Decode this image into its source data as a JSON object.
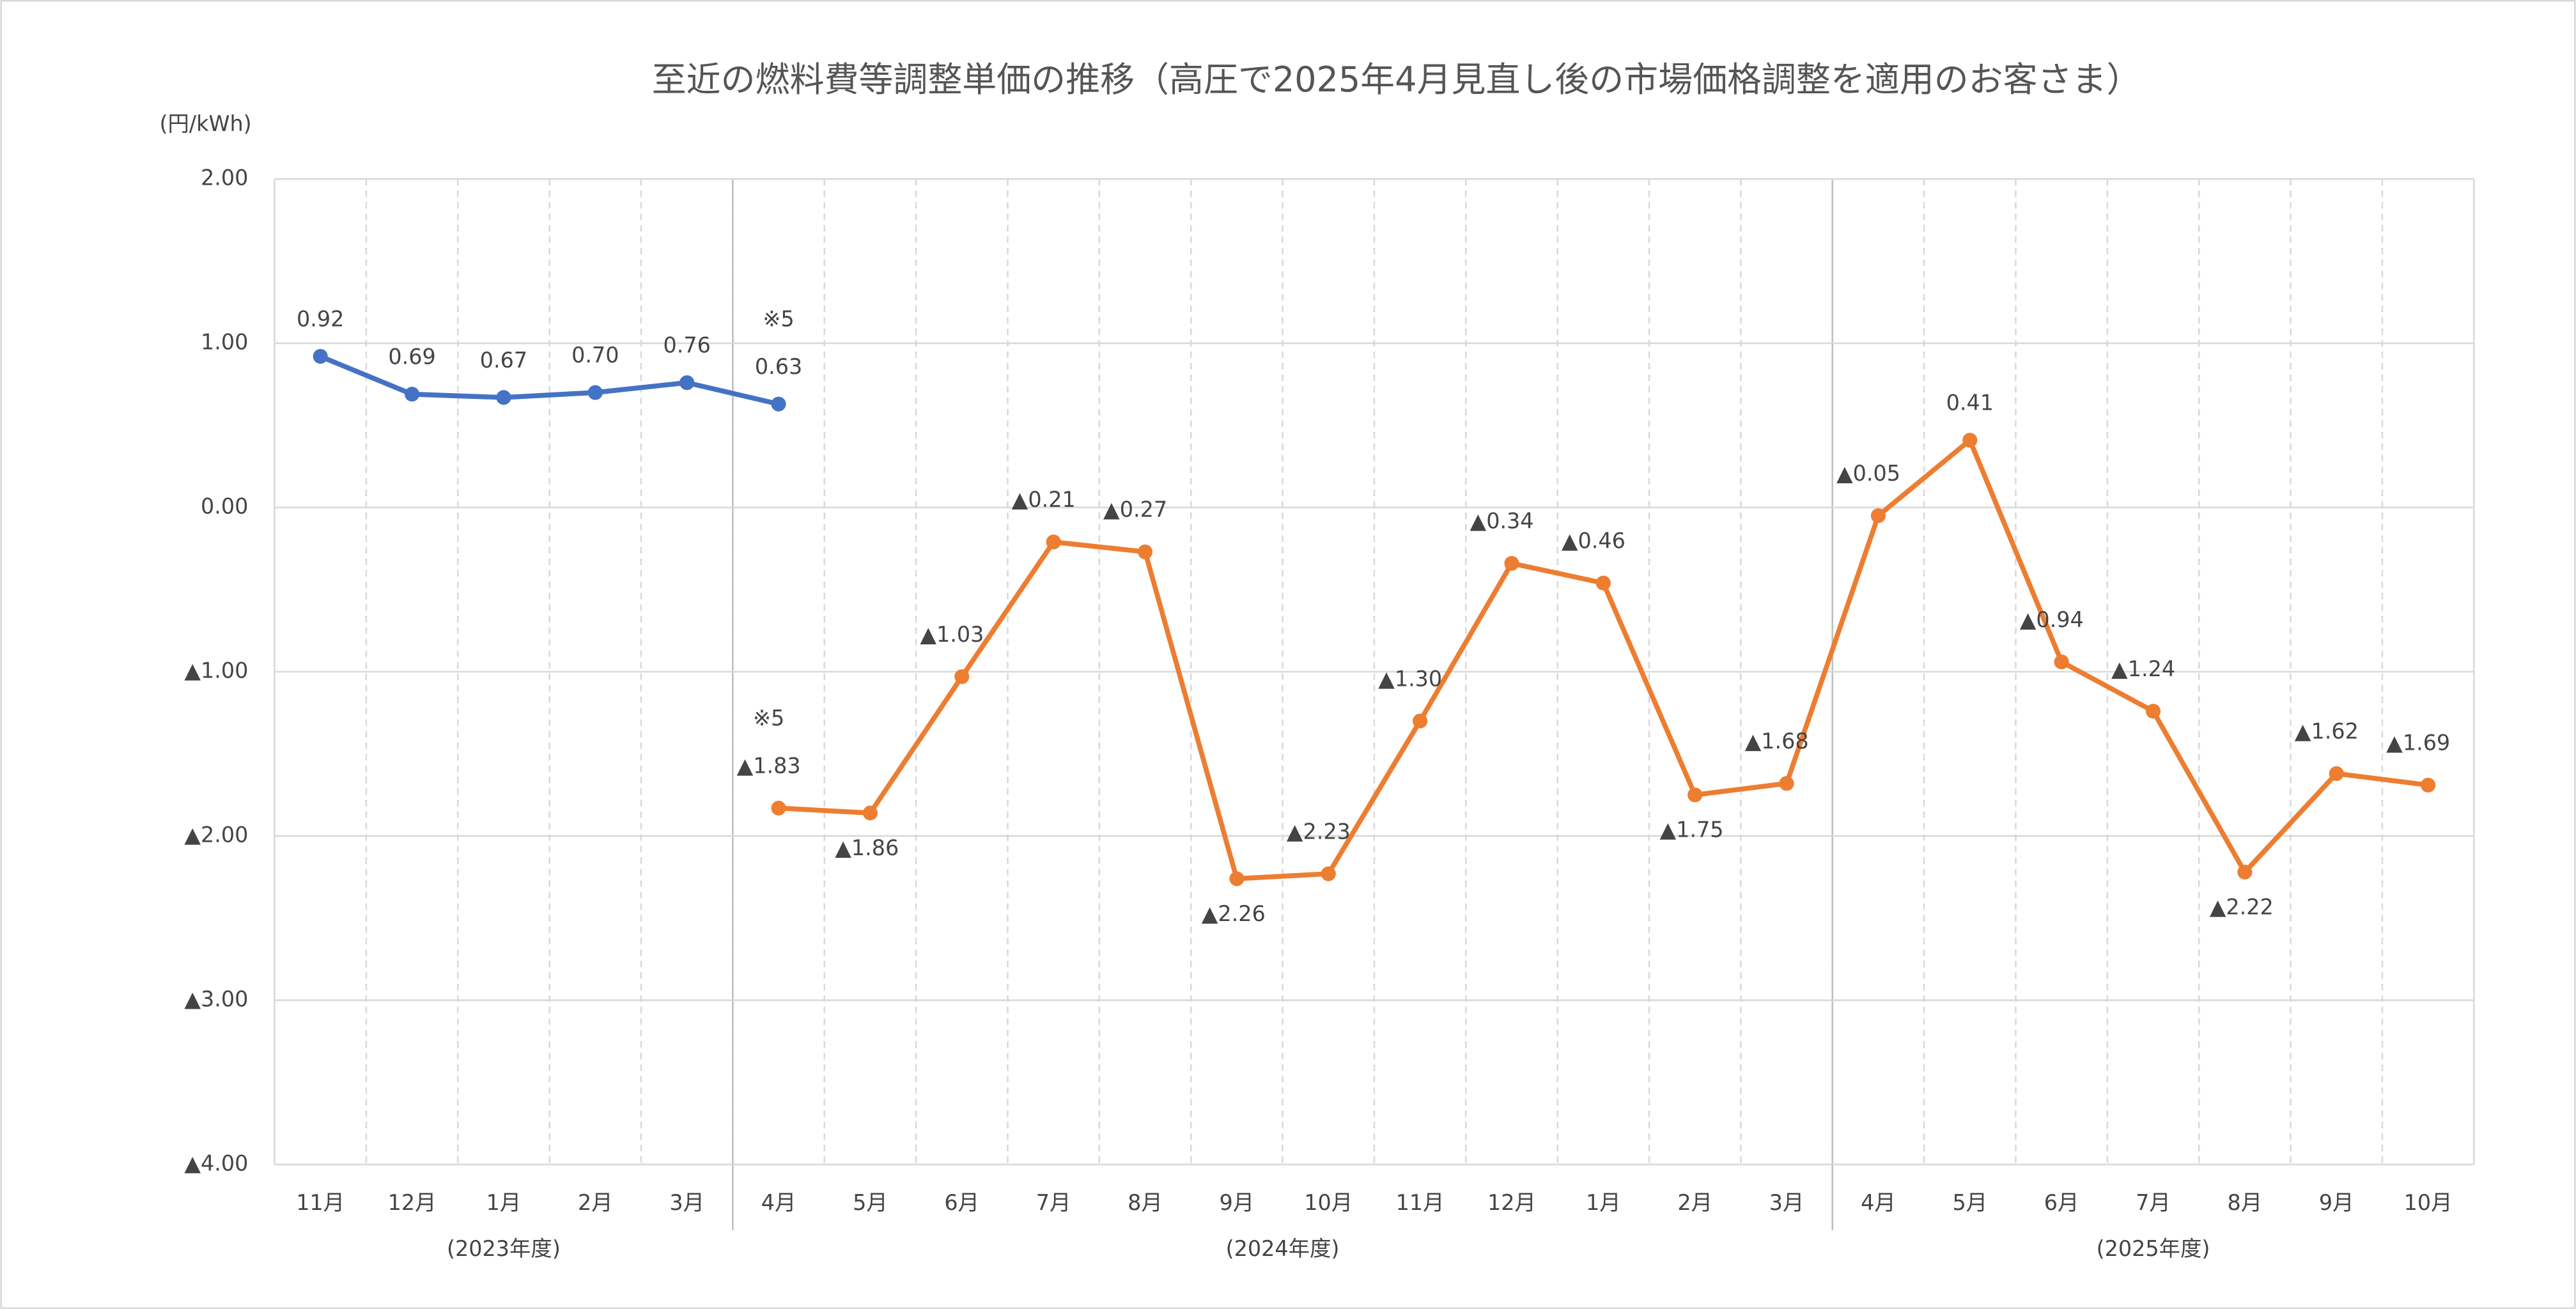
{
  "chart_data": {
    "type": "line",
    "title": "至近の燃料費等調整単価の推移（高圧で2025年4月見直し後の市場価格調整を適用のお客さま）",
    "y_label": "(円/kWh)",
    "categories": [
      "11月",
      "12月",
      "1月",
      "2月",
      "3月",
      "4月",
      "5月",
      "6月",
      "7月",
      "8月",
      "9月",
      "10月",
      "11月",
      "12月",
      "1月",
      "2月",
      "3月",
      "4月",
      "5月",
      "6月",
      "7月",
      "8月",
      "9月",
      "10月"
    ],
    "groups": [
      {
        "label": "(2023年度)",
        "start": 0,
        "end": 4
      },
      {
        "label": "(2024年度)",
        "start": 5,
        "end": 16
      },
      {
        "label": "(2025年度)",
        "start": 17,
        "end": 23
      }
    ],
    "series": [
      {
        "name": "series-1",
        "color": "#4472c4",
        "values": [
          0.92,
          0.69,
          0.67,
          0.7,
          0.76,
          0.63,
          null,
          null,
          null,
          null,
          null,
          null,
          null,
          null,
          null,
          null,
          null,
          null,
          null,
          null,
          null,
          null,
          null,
          null
        ],
        "value_labels": [
          "0.92",
          "0.69",
          "0.67",
          "0.70",
          "0.76",
          "0.63",
          null,
          null,
          null,
          null,
          null,
          null,
          null,
          null,
          null,
          null,
          null,
          null,
          null,
          null,
          null,
          null,
          null,
          null
        ]
      },
      {
        "name": "series-2",
        "color": "#ed7d31",
        "values": [
          null,
          null,
          null,
          null,
          null,
          -1.83,
          -1.86,
          -1.03,
          -0.21,
          -0.27,
          -2.26,
          -2.23,
          -1.3,
          -0.34,
          -0.46,
          -1.75,
          -1.68,
          -0.05,
          0.41,
          -0.94,
          -1.24,
          -2.22,
          -1.62,
          -1.69
        ],
        "value_labels": [
          null,
          null,
          null,
          null,
          null,
          "▲1.83",
          "▲1.86",
          "▲1.03",
          "▲0.21",
          "▲0.27",
          "▲2.26",
          "▲2.23",
          "▲1.30",
          "▲0.34",
          "▲0.46",
          "▲1.75",
          "▲1.68",
          "▲0.05",
          "0.41",
          "▲0.94",
          "▲1.24",
          "▲2.22",
          "▲1.62",
          "▲1.69"
        ]
      }
    ],
    "annotations": [
      {
        "text": "※5",
        "series": 0,
        "index": 5
      },
      {
        "text": "※5",
        "series": 1,
        "index": 5
      }
    ],
    "ylim": [
      -4,
      2
    ],
    "yticks": [
      {
        "value": 2,
        "label": "2.00"
      },
      {
        "value": 1,
        "label": "1.00"
      },
      {
        "value": 0,
        "label": "0.00"
      },
      {
        "value": -1,
        "label": "▲1.00"
      },
      {
        "value": -2,
        "label": "▲2.00"
      },
      {
        "value": -3,
        "label": "▲3.00"
      },
      {
        "value": -4,
        "label": "▲4.00"
      }
    ],
    "grid": true,
    "legend": false
  }
}
